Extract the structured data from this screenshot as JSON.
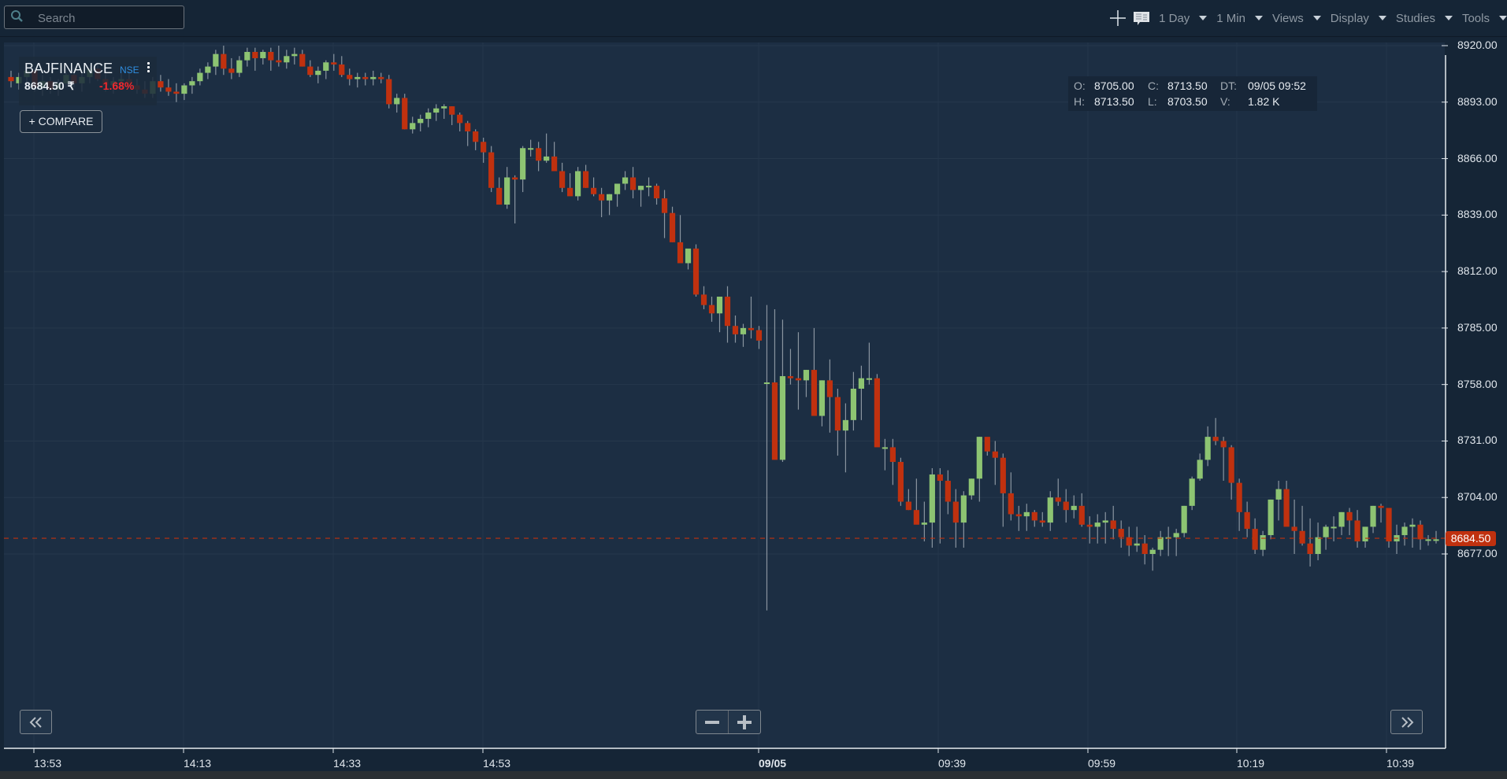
{
  "search": {
    "placeholder": "Search",
    "icon": "search-icon"
  },
  "toolbar": {
    "crosshair_icon": "crosshair-icon",
    "news_icon": "news-icon",
    "menus": [
      {
        "label": "1 Day"
      },
      {
        "label": "1 Min"
      },
      {
        "label": "Views"
      },
      {
        "label": "Display"
      },
      {
        "label": "Studies"
      },
      {
        "label": "Tools"
      }
    ]
  },
  "legend": {
    "symbol": "BAJFINANCE",
    "exchange": "NSE",
    "price": "8684.50 ₹",
    "change": "-1.68%",
    "compare_label": "+ COMPARE"
  },
  "ohlc": {
    "o_label": "O:",
    "o_value": "8705.00",
    "c_label": "C:",
    "c_value": "8713.50",
    "dt_label": "DT:",
    "dt_value": "09/05 09:52",
    "h_label": "H:",
    "h_value": "8713.50",
    "l_label": "L:",
    "l_value": "8703.50",
    "v_label": "V:",
    "v_value": "1.82 K"
  },
  "last_price_badge": "8684.50",
  "colors": {
    "up": "#8dc472",
    "down": "#c0310f",
    "background": "#1c2e43",
    "last_price_line": "#c0310f"
  },
  "nav": {
    "back_icon": "double-chevron-left-icon",
    "forward_icon": "double-chevron-right-icon",
    "zoom_out_icon": "minus-icon",
    "zoom_in_icon": "plus-icon"
  },
  "chart_data": {
    "type": "candlestick",
    "title": "BAJFINANCE NSE 1 Min",
    "y_ticks": [
      "8920.00",
      "8893.00",
      "8866.00",
      "8839.00",
      "8812.00",
      "8785.00",
      "8758.00",
      "8731.00",
      "8704.00",
      "8677.00"
    ],
    "x_ticks": [
      "13:53",
      "14:13",
      "14:33",
      "14:53",
      "09/05",
      "09:39",
      "09:59",
      "10:19",
      "10:39"
    ],
    "ylim": [
      8650,
      8920
    ],
    "last_price": 8684.5,
    "candles": [
      [
        8905,
        8908,
        8900,
        8903
      ],
      [
        8902,
        8907,
        8899,
        8905
      ],
      [
        8905,
        8911,
        8902,
        8908
      ],
      [
        8908,
        8910,
        8898,
        8900
      ],
      [
        8900,
        8906,
        8896,
        8903
      ],
      [
        8903,
        8905,
        8897,
        8899
      ],
      [
        8899,
        8904,
        8896,
        8902
      ],
      [
        8902,
        8909,
        8900,
        8906
      ],
      [
        8906,
        8910,
        8900,
        8902
      ],
      [
        8902,
        8907,
        8898,
        8905
      ],
      [
        8905,
        8911,
        8902,
        8909
      ],
      [
        8909,
        8912,
        8903,
        8904
      ],
      [
        8904,
        8908,
        8898,
        8901
      ],
      [
        8901,
        8905,
        8897,
        8903
      ],
      [
        8903,
        8907,
        8899,
        8904
      ],
      [
        8904,
        8908,
        8900,
        8901
      ],
      [
        8901,
        8904,
        8897,
        8899
      ],
      [
        8899,
        8903,
        8895,
        8897
      ],
      [
        8897,
        8905,
        8895,
        8903
      ],
      [
        8903,
        8906,
        8898,
        8900
      ],
      [
        8900,
        8904,
        8896,
        8898
      ],
      [
        8898,
        8902,
        8893,
        8897
      ],
      [
        8897,
        8902,
        8894,
        8901
      ],
      [
        8901,
        8905,
        8897,
        8903
      ],
      [
        8903,
        8909,
        8901,
        8907
      ],
      [
        8907,
        8912,
        8904,
        8910
      ],
      [
        8910,
        8918,
        8906,
        8916
      ],
      [
        8916,
        8920,
        8906,
        8909
      ],
      [
        8909,
        8914,
        8904,
        8907
      ],
      [
        8907,
        8915,
        8905,
        8913
      ],
      [
        8913,
        8919,
        8910,
        8917
      ],
      [
        8917,
        8919,
        8908,
        8914
      ],
      [
        8914,
        8918,
        8911,
        8917
      ],
      [
        8917,
        8919,
        8908,
        8913
      ],
      [
        8913,
        8920,
        8910,
        8912
      ],
      [
        8912,
        8918,
        8909,
        8915
      ],
      [
        8915,
        8919,
        8911,
        8916
      ],
      [
        8916,
        8918,
        8910,
        8910
      ],
      [
        8910,
        8913,
        8905,
        8906
      ],
      [
        8906,
        8910,
        8902,
        8908
      ],
      [
        8908,
        8913,
        8904,
        8912
      ],
      [
        8912,
        8916,
        8908,
        8911
      ],
      [
        8911,
        8915,
        8905,
        8906
      ],
      [
        8906,
        8909,
        8901,
        8904
      ],
      [
        8904,
        8907,
        8900,
        8905
      ],
      [
        8905,
        8907,
        8901,
        8904
      ],
      [
        8904,
        8908,
        8901,
        8905
      ],
      [
        8905,
        8907,
        8902,
        8904
      ],
      [
        8904,
        8906,
        8890,
        8892
      ],
      [
        8892,
        8897,
        8888,
        8895
      ],
      [
        8895,
        8897,
        8880,
        8880
      ],
      [
        8880,
        8886,
        8878,
        8883
      ],
      [
        8883,
        8887,
        8879,
        8885
      ],
      [
        8885,
        8890,
        8881,
        8888
      ],
      [
        8888,
        8892,
        8884,
        8890
      ],
      [
        8890,
        8892,
        8885,
        8891
      ],
      [
        8891,
        8891,
        8882,
        8887
      ],
      [
        8887,
        8888,
        8879,
        8883
      ],
      [
        8883,
        8884,
        8872,
        8879
      ],
      [
        8879,
        8880,
        8870,
        8874
      ],
      [
        8874,
        8876,
        8864,
        8869
      ],
      [
        8869,
        8872,
        8850,
        8852
      ],
      [
        8852,
        8857,
        8844,
        8844
      ],
      [
        8844,
        8862,
        8842,
        8857
      ],
      [
        8857,
        8858,
        8835,
        8856
      ],
      [
        8856,
        8872,
        8850,
        8871
      ],
      [
        8871,
        8875,
        8867,
        8871
      ],
      [
        8871,
        8874,
        8860,
        8865
      ],
      [
        8865,
        8878,
        8864,
        8867
      ],
      [
        8867,
        8874,
        8862,
        8860
      ],
      [
        8860,
        8864,
        8850,
        8852
      ],
      [
        8852,
        8859,
        8849,
        8848
      ],
      [
        8848,
        8862,
        8846,
        8860
      ],
      [
        8860,
        8863,
        8852,
        8852
      ],
      [
        8852,
        8857,
        8848,
        8849
      ],
      [
        8849,
        8852,
        8838,
        8846
      ],
      [
        8846,
        8849,
        8839,
        8849
      ],
      [
        8849,
        8851,
        8843,
        8854
      ],
      [
        8854,
        8860,
        8851,
        8857
      ],
      [
        8857,
        8862,
        8847,
        8851
      ],
      [
        8851,
        8853,
        8843,
        8853
      ],
      [
        8853,
        8857,
        8848,
        8853
      ],
      [
        8853,
        8854,
        8844,
        8847
      ],
      [
        8847,
        8851,
        8828,
        8840
      ],
      [
        8840,
        8843,
        8826,
        8826
      ],
      [
        8826,
        8839,
        8819,
        8816
      ],
      [
        8816,
        8822,
        8813,
        8823
      ],
      [
        8823,
        8825,
        8800,
        8801
      ],
      [
        8801,
        8805,
        8794,
        8796
      ],
      [
        8796,
        8800,
        8788,
        8792
      ],
      [
        8792,
        8795,
        8783,
        8800
      ],
      [
        8800,
        8805,
        8778,
        8786
      ],
      [
        8786,
        8791,
        8778,
        8782
      ],
      [
        8782,
        8787,
        8776,
        8785
      ],
      [
        8785,
        8800,
        8780,
        8784
      ],
      [
        8784,
        8786,
        8775,
        8779
      ],
      [
        8759,
        8796,
        8650,
        8759
      ],
      [
        8759,
        8794,
        8726,
        8722
      ],
      [
        8722,
        8789,
        8721,
        8762
      ],
      [
        8762,
        8775,
        8758,
        8761
      ],
      [
        8761,
        8783,
        8746,
        8760
      ],
      [
        8760,
        8765,
        8752,
        8765
      ],
      [
        8765,
        8785,
        8748,
        8743
      ],
      [
        8743,
        8760,
        8738,
        8760
      ],
      [
        8760,
        8770,
        8735,
        8752
      ],
      [
        8752,
        8756,
        8724,
        8736
      ],
      [
        8736,
        8749,
        8716,
        8741
      ],
      [
        8741,
        8764,
        8736,
        8756
      ],
      [
        8756,
        8767,
        8741,
        8761
      ],
      [
        8761,
        8778,
        8758,
        8761
      ],
      [
        8761,
        8763,
        8736,
        8728
      ],
      [
        8728,
        8732,
        8717,
        8728
      ],
      [
        8728,
        8732,
        8710,
        8721
      ],
      [
        8721,
        8723,
        8700,
        8702
      ],
      [
        8702,
        8708,
        8698,
        8698
      ],
      [
        8698,
        8713,
        8692,
        8691
      ],
      [
        8691,
        8702,
        8683,
        8692
      ],
      [
        8692,
        8718,
        8680,
        8715
      ],
      [
        8715,
        8718,
        8682,
        8712
      ],
      [
        8712,
        8717,
        8696,
        8702
      ],
      [
        8702,
        8708,
        8680,
        8692
      ],
      [
        8692,
        8707,
        8680,
        8705
      ],
      [
        8705,
        8713,
        8703,
        8713
      ],
      [
        8713,
        8733,
        8702,
        8733
      ],
      [
        8733,
        8730,
        8724,
        8726
      ],
      [
        8726,
        8731,
        8710,
        8723
      ],
      [
        8723,
        8725,
        8690,
        8706
      ],
      [
        8706,
        8716,
        8693,
        8696
      ],
      [
        8696,
        8700,
        8688,
        8695
      ],
      [
        8695,
        8701,
        8688,
        8697
      ],
      [
        8697,
        8698,
        8690,
        8693
      ],
      [
        8693,
        8697,
        8690,
        8692
      ],
      [
        8692,
        8707,
        8688,
        8704
      ],
      [
        8704,
        8713,
        8700,
        8702
      ],
      [
        8702,
        8708,
        8692,
        8698
      ],
      [
        8698,
        8705,
        8694,
        8700
      ],
      [
        8700,
        8706,
        8690,
        8691
      ],
      [
        8691,
        8695,
        8682,
        8690
      ],
      [
        8690,
        8696,
        8682,
        8692
      ],
      [
        8692,
        8697,
        8682,
        8693
      ],
      [
        8693,
        8700,
        8684,
        8689
      ],
      [
        8689,
        8693,
        8680,
        8685
      ],
      [
        8685,
        8690,
        8676,
        8681
      ],
      [
        8681,
        8690,
        8678,
        8682
      ],
      [
        8682,
        8686,
        8672,
        8677
      ],
      [
        8677,
        8680,
        8669,
        8679
      ],
      [
        8679,
        8688,
        8676,
        8685
      ],
      [
        8685,
        8690,
        8676,
        8685
      ],
      [
        8685,
        8689,
        8676,
        8687
      ],
      [
        8687,
        8700,
        8685,
        8700
      ],
      [
        8700,
        8714,
        8698,
        8713
      ],
      [
        8713,
        8725,
        8712,
        8722
      ],
      [
        8722,
        8738,
        8719,
        8733
      ],
      [
        8733,
        8742,
        8729,
        8731
      ],
      [
        8731,
        8733,
        8712,
        8728
      ],
      [
        8728,
        8729,
        8703,
        8711
      ],
      [
        8711,
        8713,
        8688,
        8697
      ],
      [
        8697,
        8702,
        8685,
        8689
      ],
      [
        8689,
        8694,
        8677,
        8679
      ],
      [
        8679,
        8688,
        8676,
        8686
      ],
      [
        8686,
        8703,
        8684,
        8703
      ],
      [
        8703,
        8712,
        8693,
        8708
      ],
      [
        8708,
        8712,
        8693,
        8690
      ],
      [
        8690,
        8703,
        8677,
        8688
      ],
      [
        8688,
        8700,
        8681,
        8682
      ],
      [
        8682,
        8694,
        8671,
        8677
      ],
      [
        8677,
        8692,
        8674,
        8685
      ],
      [
        8685,
        8691,
        8679,
        8690
      ],
      [
        8690,
        8695,
        8683,
        8690
      ],
      [
        8690,
        8697,
        8686,
        8697
      ],
      [
        8697,
        8699,
        8686,
        8693
      ],
      [
        8693,
        8698,
        8680,
        8683
      ],
      [
        8683,
        8690,
        8680,
        8690
      ],
      [
        8690,
        8700,
        8687,
        8700
      ],
      [
        8700,
        8701,
        8692,
        8699
      ],
      [
        8699,
        8698,
        8680,
        8683
      ],
      [
        8683,
        8691,
        8677,
        8686
      ],
      [
        8686,
        8692,
        8681,
        8690
      ],
      [
        8690,
        8694,
        8680,
        8691
      ],
      [
        8691,
        8693,
        8679,
        8684
      ],
      [
        8684,
        8686,
        8681,
        8684
      ],
      [
        8684,
        8688,
        8682,
        8684
      ]
    ]
  }
}
